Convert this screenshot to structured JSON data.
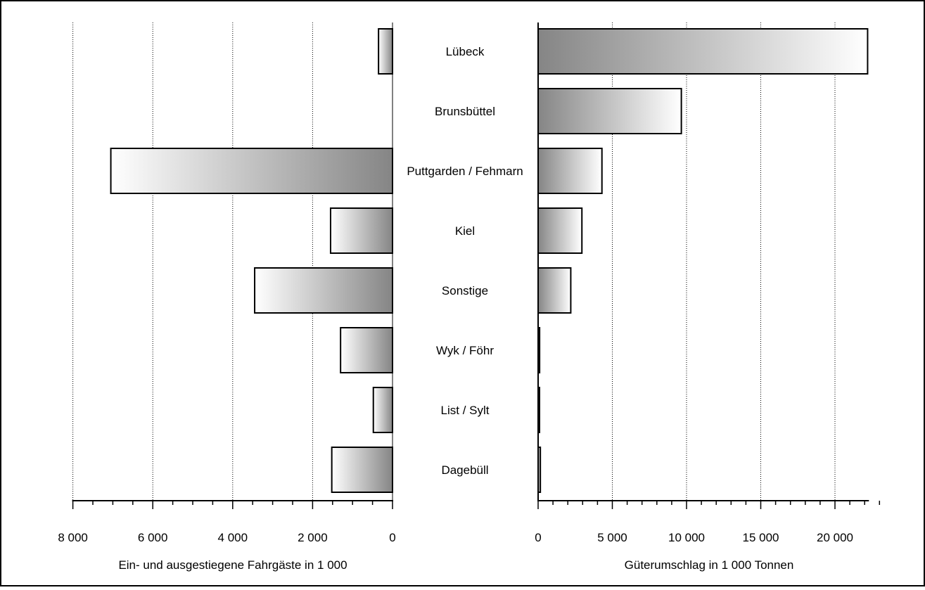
{
  "chart_data": [
    {
      "type": "bar",
      "orientation": "horizontal",
      "direction": "leftward",
      "categories": [
        "Lübeck",
        "Brunsbüttel",
        "Puttgarden / Fehmarn",
        "Kiel",
        "Sonstige",
        "Wyk / Föhr",
        "List / Sylt",
        "Dagebüll"
      ],
      "values": [
        350,
        0,
        7050,
        1550,
        3450,
        1300,
        480,
        1520
      ],
      "xlim": [
        0,
        8000
      ],
      "xticks": [
        8000,
        6000,
        4000,
        2000,
        0
      ],
      "xtick_labels": [
        "8 000",
        "6 000",
        "4 000",
        "2 000",
        "0"
      ],
      "xlabel": "Ein- und ausgestiegene Fahrgäste in 1 000",
      "grid": "vertical dotted"
    },
    {
      "type": "bar",
      "orientation": "horizontal",
      "direction": "rightward",
      "categories": [
        "Lübeck",
        "Brunsbüttel",
        "Puttgarden / Fehmarn",
        "Kiel",
        "Sonstige",
        "Wyk / Föhr",
        "List / Sylt",
        "Dagebüll"
      ],
      "values": [
        22200,
        9650,
        4300,
        2950,
        2200,
        100,
        80,
        150
      ],
      "xlim": [
        0,
        23000
      ],
      "xticks": [
        0,
        5000,
        10000,
        15000,
        20000
      ],
      "xtick_labels": [
        "0",
        "5 000",
        "10 000",
        "15 000",
        "20 000"
      ],
      "xlabel": "Güterumschlag in 1 000 Tonnen",
      "grid": "vertical dotted"
    }
  ]
}
